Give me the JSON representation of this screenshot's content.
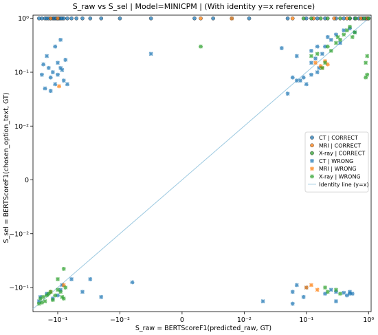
{
  "chart_data": {
    "type": "scatter",
    "title": "S_raw vs S_sel | Model=MINICPM | (With identity y=x reference)",
    "xlabel": "S_raw = BERTScoreF1(predicted_raw, GT)",
    "ylabel": "S_sel = BERTScoreF1(chosen_option_text, GT)",
    "xscale": "symlog",
    "yscale": "symlog",
    "linthresh": 0.01,
    "xlim": [
      -0.25,
      1.1
    ],
    "ylim": [
      -0.28,
      1.15
    ],
    "xticks": [
      {
        "value": -0.1,
        "label": "−10⁻¹"
      },
      {
        "value": -0.01,
        "label": "−10⁻²"
      },
      {
        "value": 0,
        "label": "0"
      },
      {
        "value": 0.01,
        "label": "10⁻²"
      },
      {
        "value": 0.1,
        "label": "10⁻¹"
      },
      {
        "value": 1,
        "label": "10⁰"
      }
    ],
    "yticks": [
      {
        "value": 1,
        "label": "10⁰"
      },
      {
        "value": 0.1,
        "label": "10⁻¹"
      },
      {
        "value": 0.01,
        "label": "10⁻²"
      },
      {
        "value": 0,
        "label": "0"
      },
      {
        "value": -0.01,
        "label": "−10⁻²"
      },
      {
        "value": -0.1,
        "label": "−10⁻¹"
      }
    ],
    "grid": false,
    "legend_position": "right",
    "series": [
      {
        "name": "CT | CORRECT",
        "marker": "circle",
        "color": "#1f77b4",
        "x": [
          -0.2,
          -0.18,
          -0.16,
          -0.15,
          -0.14,
          -0.13,
          -0.12,
          -0.115,
          -0.11,
          -0.105,
          -0.1,
          -0.095,
          -0.09,
          -0.085,
          -0.08,
          -0.07,
          -0.06,
          -0.05,
          -0.04,
          -0.03,
          -0.02,
          -0.01,
          -0.005,
          0.002,
          0.005,
          0.008,
          0.012,
          0.05,
          0.1,
          0.15,
          0.2,
          0.3,
          0.4,
          0.5,
          0.6,
          0.7,
          0.8,
          0.9,
          0.95,
          1.0
        ],
        "y": [
          1,
          1,
          1,
          1,
          1,
          1,
          1,
          1,
          1,
          1,
          1,
          1,
          1,
          1,
          1,
          1,
          1,
          1,
          1,
          1,
          1,
          1,
          1,
          1,
          1,
          1,
          1,
          1,
          1,
          1,
          1,
          1,
          1,
          1,
          1,
          1,
          1,
          1,
          1,
          1
        ]
      },
      {
        "name": "MRI | CORRECT",
        "marker": "circle",
        "color": "#ff7f0e",
        "x": [
          -0.13,
          -0.1,
          0.003,
          0.06,
          0.13,
          0.28,
          0.45,
          0.75,
          0.95
        ],
        "y": [
          1,
          1,
          1,
          1,
          1,
          1,
          1,
          1,
          1
        ]
      },
      {
        "name": "X-ray | CORRECT",
        "marker": "circle",
        "color": "#2ca02c",
        "x": [
          0.09,
          0.12,
          0.17,
          0.22,
          0.35,
          0.5,
          0.62,
          0.85,
          1.0
        ],
        "y": [
          1,
          1,
          1,
          1,
          1,
          1,
          1,
          1,
          1
        ]
      },
      {
        "name": "CT | WRONG",
        "marker": "x",
        "color": "#1f77b4",
        "x": [
          -0.18,
          -0.17,
          -0.15,
          -0.14,
          -0.13,
          -0.12,
          -0.11,
          -0.1,
          -0.09,
          -0.085,
          -0.08,
          -0.075,
          -0.07,
          -0.16,
          -0.13,
          -0.11,
          -0.1,
          -0.09,
          -0.2,
          -0.19,
          -0.15,
          -0.12,
          -0.1,
          -0.09,
          -0.085,
          -0.06,
          -0.04,
          -0.02,
          -0.03,
          -0.008,
          -0.005,
          0.02,
          0.04,
          0.05,
          0.06,
          0.07,
          0.08,
          0.1,
          0.12,
          0.14,
          0.16,
          0.18,
          0.2,
          0.22,
          0.25,
          0.3,
          0.35,
          0.4,
          0.5,
          0.6,
          0.12,
          0.09,
          0.07,
          0.15,
          0.06,
          0.07,
          0.1,
          0.2,
          0.25,
          0.3,
          0.4,
          0.5,
          0.06,
          0.09,
          0.3,
          0.45,
          0.5,
          0.55,
          0.12,
          0.15
        ],
        "y": [
          0.09,
          0.14,
          0.2,
          0.12,
          0.08,
          0.1,
          0.3,
          0.15,
          0.4,
          0.11,
          0.07,
          0.17,
          0.06,
          0.05,
          0.045,
          0.06,
          0.09,
          0.12,
          -0.18,
          -0.15,
          -0.13,
          -0.16,
          -0.14,
          -0.11,
          -0.09,
          -0.07,
          -0.12,
          -0.15,
          -0.07,
          -0.08,
          0.22,
          -0.18,
          0.28,
          0.04,
          0.08,
          0.2,
          0.07,
          0.06,
          0.15,
          0.18,
          0.12,
          0.22,
          0.3,
          0.45,
          0.4,
          0.5,
          0.35,
          0.6,
          0.65,
          0.55,
          0.09,
          0.08,
          0.07,
          0.1,
          -0.12,
          -0.09,
          -0.1,
          -0.13,
          -0.11,
          -0.12,
          -0.125,
          -0.13,
          -0.2,
          -0.15,
          -0.18,
          -0.14,
          -0.12,
          -0.13,
          0.25,
          0.3
        ]
      },
      {
        "name": "MRI | WRONG",
        "marker": "x",
        "color": "#ff7f0e",
        "x": [
          -0.095,
          -0.13,
          -0.08,
          0.008,
          0.14,
          0.17,
          0.18,
          0.2,
          0.12,
          0.1,
          0.15,
          0.22
        ],
        "y": [
          0.055,
          -0.12,
          -0.09,
          1,
          0.15,
          0.13,
          0.12,
          0.16,
          -0.09,
          -0.1,
          -0.11,
          0.14
        ]
      },
      {
        "name": "X-ray | WRONG",
        "marker": "x",
        "color": "#2ca02c",
        "x": [
          -0.2,
          -0.19,
          -0.18,
          -0.17,
          -0.16,
          -0.15,
          -0.14,
          -0.13,
          -0.12,
          -0.11,
          -0.1,
          -0.09,
          -0.085,
          -0.08,
          -0.075,
          -0.08,
          -0.1,
          0.003,
          0.12,
          0.15,
          0.18,
          0.2,
          0.22,
          0.25,
          0.3,
          0.32,
          0.35,
          0.4,
          0.45,
          0.5,
          0.55,
          0.6,
          0.9,
          0.95,
          0.95,
          0.9,
          0.2,
          0.22,
          0.3,
          0.35
        ],
        "y": [
          -0.2,
          -0.16,
          -0.19,
          -0.15,
          -0.18,
          -0.14,
          -0.13,
          -0.12,
          -0.17,
          -0.14,
          -0.11,
          -0.12,
          -0.15,
          -0.16,
          -0.1,
          -0.045,
          -0.07,
          0.3,
          0.2,
          0.22,
          0.12,
          0.15,
          0.3,
          0.25,
          0.35,
          0.45,
          0.4,
          0.5,
          0.6,
          0.7,
          0.45,
          0.55,
          0.15,
          0.09,
          0.2,
          0.08,
          -0.1,
          -0.12,
          -0.11,
          -0.13
        ]
      }
    ],
    "identity_line": {
      "name": "Identity line (y=x)",
      "color": "#9ecae1"
    }
  }
}
